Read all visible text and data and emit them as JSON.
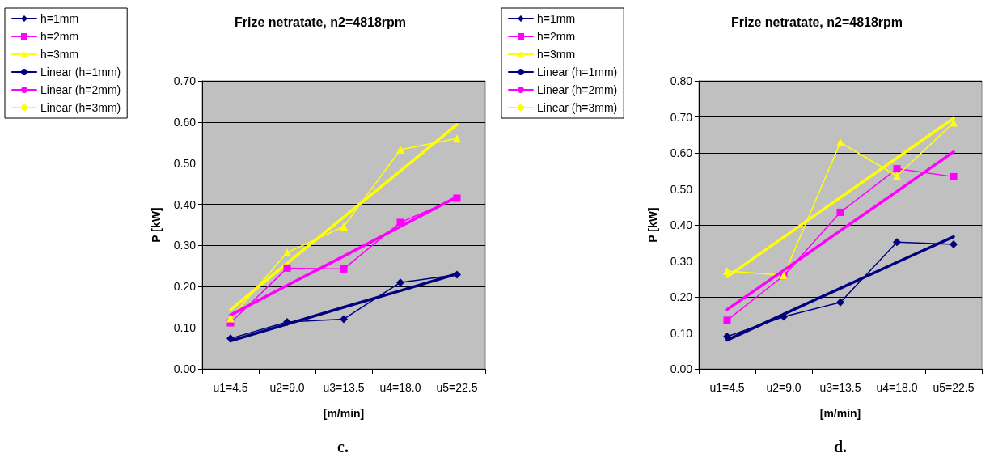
{
  "chart_data": [
    {
      "type": "line",
      "title": "Frize netratate, n2=4818rpm",
      "xlabel": "[m/min]",
      "ylabel": "P [kW]",
      "categories": [
        "u1=4.5",
        "u2=9.0",
        "u3=13.5",
        "u4=18.0",
        "u5=22.5"
      ],
      "ylim": [
        0,
        0.7
      ],
      "yticks": [
        {
          "value": 0,
          "label": "0.00"
        },
        {
          "value": 0.1,
          "label": "0.10"
        },
        {
          "value": 0.2,
          "label": "0.20"
        },
        {
          "value": 0.3,
          "label": "0.30"
        },
        {
          "value": 0.4,
          "label": "0.40"
        },
        {
          "value": 0.5,
          "label": "0.50"
        },
        {
          "value": 0.6,
          "label": "0.60"
        },
        {
          "value": 0.7,
          "label": "0.70"
        }
      ],
      "grid": "y",
      "legend": "left",
      "annotations": [
        "c."
      ],
      "series": [
        {
          "name": "h=1mm",
          "color": "#000080",
          "marker": "diamond",
          "values": [
            0.074,
            0.114,
            0.121,
            0.21,
            0.229
          ]
        },
        {
          "name": "h=2mm",
          "color": "#ff00ff",
          "marker": "square",
          "values": [
            0.112,
            0.245,
            0.243,
            0.356,
            0.415
          ]
        },
        {
          "name": "h=3mm",
          "color": "#ffff00",
          "marker": "triangle",
          "values": [
            0.123,
            0.283,
            0.346,
            0.533,
            0.56
          ]
        },
        {
          "name": "Linear (h=1mm)",
          "color": "#000080",
          "marker": "none",
          "values": [
            0.068,
            0.109,
            0.15,
            0.19,
            0.231
          ]
        },
        {
          "name": "Linear (h=2mm)",
          "color": "#ff00ff",
          "marker": "none",
          "values": [
            0.131,
            0.203,
            0.274,
            0.346,
            0.418
          ]
        },
        {
          "name": "Linear (h=3mm)",
          "color": "#ffff00",
          "marker": "none",
          "values": [
            0.144,
            0.257,
            0.369,
            0.481,
            0.594
          ]
        }
      ]
    },
    {
      "type": "line",
      "title": "Frize netratate, n2=4818rpm",
      "xlabel": "[m/min]",
      "ylabel": "P [kW]",
      "categories": [
        "u1=4.5",
        "u2=9.0",
        "u3=13.5",
        "u4=18.0",
        "u5=22.5"
      ],
      "ylim": [
        0,
        0.8
      ],
      "yticks": [
        {
          "value": 0,
          "label": "0.00"
        },
        {
          "value": 0.1,
          "label": "0.10"
        },
        {
          "value": 0.2,
          "label": "0.20"
        },
        {
          "value": 0.3,
          "label": "0.30"
        },
        {
          "value": 0.4,
          "label": "0.40"
        },
        {
          "value": 0.5,
          "label": "0.50"
        },
        {
          "value": 0.6,
          "label": "0.60"
        },
        {
          "value": 0.7,
          "label": "0.70"
        },
        {
          "value": 0.8,
          "label": "0.80"
        }
      ],
      "grid": "y",
      "legend": "left",
      "annotations": [
        "d."
      ],
      "series": [
        {
          "name": "h=1mm",
          "color": "#000080",
          "marker": "diamond",
          "values": [
            0.09,
            0.145,
            0.185,
            0.352,
            0.346
          ]
        },
        {
          "name": "h=2mm",
          "color": "#ff00ff",
          "marker": "square",
          "values": [
            0.135,
            0.259,
            0.435,
            0.556,
            0.534
          ]
        },
        {
          "name": "h=3mm",
          "color": "#ffff00",
          "marker": "triangle",
          "values": [
            0.272,
            0.26,
            0.629,
            0.536,
            0.684
          ]
        },
        {
          "name": "Linear (h=1mm)",
          "color": "#000080",
          "marker": "none",
          "values": [
            0.08,
            0.152,
            0.224,
            0.296,
            0.367
          ]
        },
        {
          "name": "Linear (h=2mm)",
          "color": "#ff00ff",
          "marker": "none",
          "values": [
            0.165,
            0.274,
            0.384,
            0.493,
            0.603
          ]
        },
        {
          "name": "Linear (h=3mm)",
          "color": "#ffff00",
          "marker": "none",
          "values": [
            0.256,
            0.366,
            0.476,
            0.586,
            0.696
          ]
        }
      ]
    }
  ]
}
